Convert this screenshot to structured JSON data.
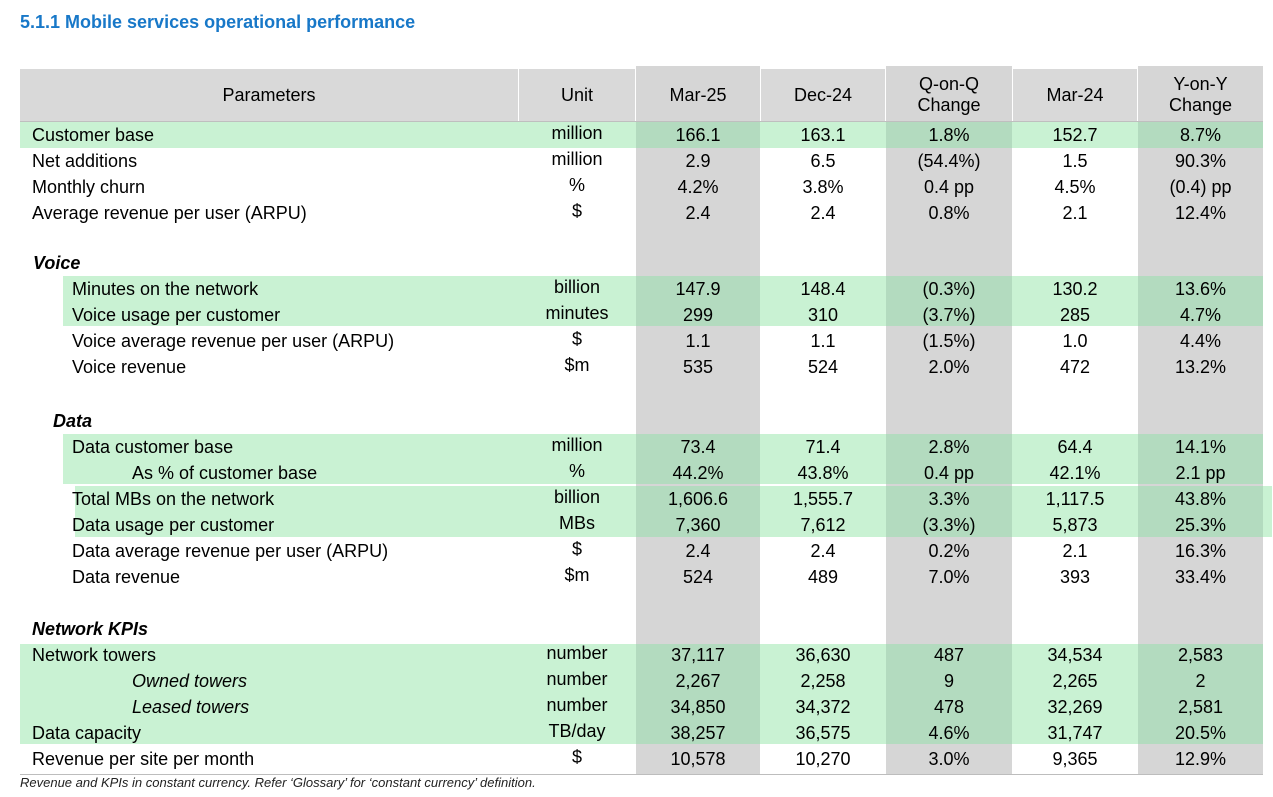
{
  "title": "5.1.1 Mobile services operational performance",
  "headers": {
    "parameters": "Parameters",
    "unit": "Unit",
    "mar25": "Mar-25",
    "dec24": "Dec-24",
    "qoq": "Q-on-Q\nChange",
    "mar24": "Mar-24",
    "yoy": "Y-on-Y\nChange"
  },
  "rows": [
    {
      "label": "Customer base",
      "unit": "million",
      "values": [
        "166.1",
        "163.1",
        "1.8%",
        "152.7",
        "8.7%"
      ]
    },
    {
      "label": "Net additions",
      "unit": "million",
      "values": [
        "2.9",
        "6.5",
        "(54.4%)",
        "1.5",
        "90.3%"
      ]
    },
    {
      "label": "Monthly churn",
      "unit": "%",
      "values": [
        "4.2%",
        "3.8%",
        "0.4 pp",
        "4.5%",
        "(0.4) pp"
      ]
    },
    {
      "label": "Average revenue per user (ARPU)",
      "unit": "$",
      "values": [
        "2.4",
        "2.4",
        "0.8%",
        "2.1",
        "12.4%"
      ]
    },
    {
      "label": "Voice",
      "unit": "",
      "values": [
        "",
        "",
        "",
        "",
        ""
      ]
    },
    {
      "label": "Minutes on the network",
      "unit": "billion",
      "values": [
        "147.9",
        "148.4",
        "(0.3%)",
        "130.2",
        "13.6%"
      ]
    },
    {
      "label": "Voice usage per customer",
      "unit": "minutes",
      "values": [
        "299",
        "310",
        "(3.7%)",
        "285",
        "4.7%"
      ]
    },
    {
      "label": "Voice average revenue per user (ARPU)",
      "unit": "$",
      "values": [
        "1.1",
        "1.1",
        "(1.5%)",
        "1.0",
        "4.4%"
      ]
    },
    {
      "label": "Voice revenue",
      "unit": "$m",
      "values": [
        "535",
        "524",
        "2.0%",
        "472",
        "13.2%"
      ]
    },
    {
      "label": "Data",
      "unit": "",
      "values": [
        "",
        "",
        "",
        "",
        ""
      ]
    },
    {
      "label": "Data customer base",
      "unit": "million",
      "values": [
        "73.4",
        "71.4",
        "2.8%",
        "64.4",
        "14.1%"
      ]
    },
    {
      "label": "As % of customer base",
      "unit": "%",
      "values": [
        "44.2%",
        "43.8%",
        "0.4 pp",
        "42.1%",
        "2.1 pp"
      ]
    },
    {
      "label": "Total MBs on the network",
      "unit": "billion",
      "values": [
        "1,606.6",
        "1,555.7",
        "3.3%",
        "1,117.5",
        "43.8%"
      ]
    },
    {
      "label": "Data usage per customer",
      "unit": "MBs",
      "values": [
        "7,360",
        "7,612",
        "(3.3%)",
        "5,873",
        "25.3%"
      ]
    },
    {
      "label": "Data average revenue per user (ARPU)",
      "unit": "$",
      "values": [
        "2.4",
        "2.4",
        "0.2%",
        "2.1",
        "16.3%"
      ]
    },
    {
      "label": "Data revenue",
      "unit": "$m",
      "values": [
        "524",
        "489",
        "7.0%",
        "393",
        "33.4%"
      ]
    },
    {
      "label": "Network KPIs",
      "unit": "",
      "values": [
        "",
        "",
        "",
        "",
        ""
      ]
    },
    {
      "label": "Network towers",
      "unit": "number",
      "values": [
        "37,117",
        "36,630",
        "487",
        "34,534",
        "2,583"
      ]
    },
    {
      "label": "Owned towers",
      "unit": "number",
      "values": [
        "2,267",
        "2,258",
        "9",
        "2,265",
        "2"
      ]
    },
    {
      "label": "Leased towers",
      "unit": "number",
      "values": [
        "34,850",
        "34,372",
        "478",
        "32,269",
        "2,581"
      ]
    },
    {
      "label": "Data capacity",
      "unit": "TB/day",
      "values": [
        "38,257",
        "36,575",
        "4.6%",
        "31,747",
        "20.5%"
      ]
    },
    {
      "label": "Revenue per site per month",
      "unit": "$",
      "values": [
        "10,578",
        "10,270",
        "3.0%",
        "9,365",
        "12.9%"
      ]
    }
  ],
  "footnote": "Revenue and KPIs in constant currency. Refer ‘Glossary’ for ‘constant currency’ definition."
}
